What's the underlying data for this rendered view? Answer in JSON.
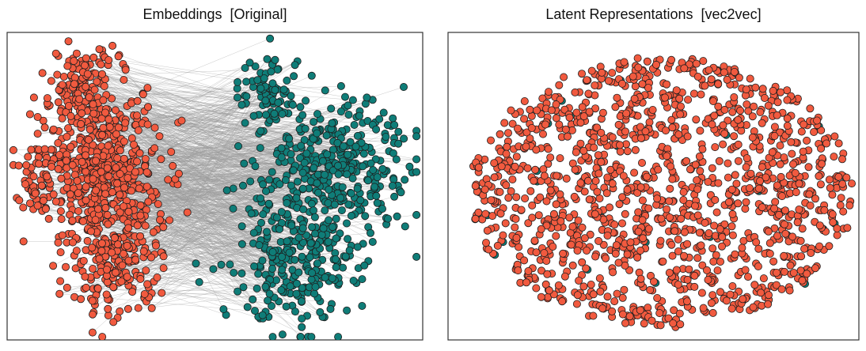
{
  "chart_data": [
    {
      "type": "scatter",
      "title": "Embeddings  [Original]",
      "xlabel": "",
      "ylabel": "",
      "axes_ticks": false,
      "grid": false,
      "legend": "none",
      "series": [
        {
          "color": "#f15a3f",
          "clusters": [
            {
              "x": 0.18,
              "y": 0.16,
              "sx": 0.045,
              "sy": 0.055,
              "n": 110
            },
            {
              "x": 0.23,
              "y": 0.45,
              "sx": 0.07,
              "sy": 0.14,
              "n": 520
            },
            {
              "x": 0.26,
              "y": 0.74,
              "sx": 0.055,
              "sy": 0.09,
              "n": 190
            },
            {
              "x": 0.08,
              "y": 0.47,
              "sx": 0.03,
              "sy": 0.08,
              "n": 60
            }
          ]
        },
        {
          "color": "#0f7d78",
          "clusters": [
            {
              "x": 0.63,
              "y": 0.22,
              "sx": 0.035,
              "sy": 0.07,
              "n": 90
            },
            {
              "x": 0.8,
              "y": 0.42,
              "sx": 0.085,
              "sy": 0.1,
              "n": 330
            },
            {
              "x": 0.7,
              "y": 0.72,
              "sx": 0.08,
              "sy": 0.12,
              "n": 300
            }
          ]
        }
      ],
      "connector_lines": {
        "color": "#9a9a9a",
        "count": 900
      }
    },
    {
      "type": "scatter",
      "title": "Latent Representations  [vec2vec]",
      "xlabel": "",
      "ylabel": "",
      "axes_ticks": false,
      "grid": false,
      "legend": "none",
      "series": [
        {
          "color": "#f15a3f",
          "shape": "ellipse",
          "center": [
            0.52,
            0.52
          ],
          "spread": [
            0.47,
            0.44
          ],
          "n": 1350
        },
        {
          "color": "#0f7d78",
          "note_role": "hidden-overlapped",
          "n": 30
        }
      ]
    }
  ],
  "colors": {
    "panel_border": "#333333",
    "marker_edge": "#1e1e1e",
    "link": "#9a9a9a",
    "red": "#f15a3f",
    "teal": "#0f7d78"
  }
}
